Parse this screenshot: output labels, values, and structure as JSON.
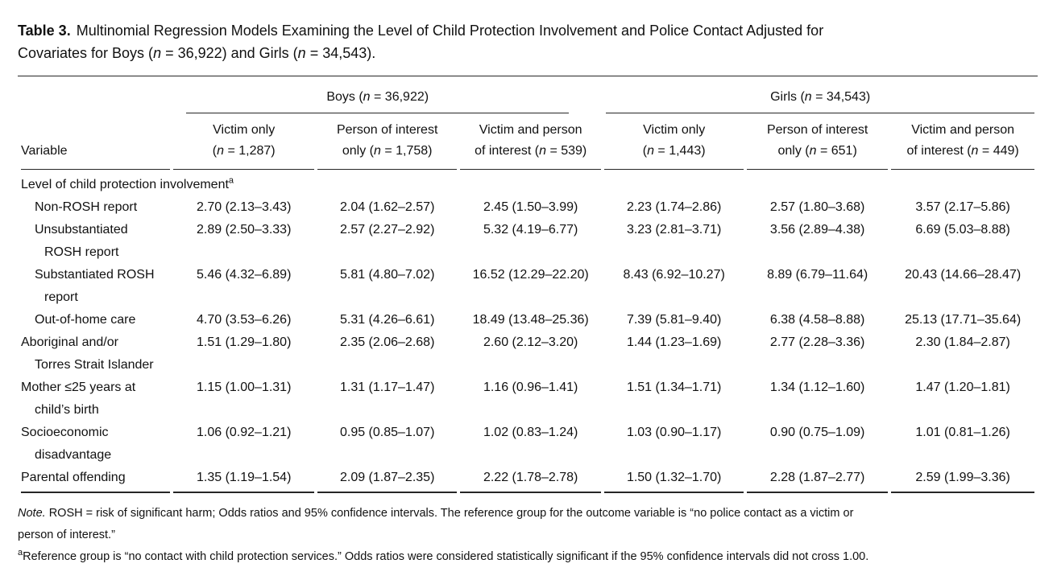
{
  "title": {
    "label": "Table 3.",
    "line1_rest": "Multinomial Regression Models Examining the Level of Child Protection Involvement and Police Contact Adjusted for",
    "line2": {
      "pre": "Covariates for Boys (",
      "n1": "n",
      "mid": " = 36,922) and Girls (",
      "n2": "n",
      "post": " = 34,543)."
    }
  },
  "table": {
    "variable_header": "Variable",
    "groups": [
      {
        "pre": "Boys (",
        "n": "n",
        "post": " = 36,922)"
      },
      {
        "pre": "Girls (",
        "n": "n",
        "post": " = 34,543)"
      }
    ],
    "columns": [
      {
        "line1": "Victim only",
        "line2_pre": "(",
        "n": "n",
        "line2_post": " = 1,287)"
      },
      {
        "line1": "Person of interest",
        "line2_pre": "only (",
        "n": "n",
        "line2_post": " = 1,758)"
      },
      {
        "line1": "Victim and person",
        "line2_pre": "of interest (",
        "n": "n",
        "line2_post": " = 539)"
      },
      {
        "line1": "Victim only",
        "line2_pre": "(",
        "n": "n",
        "line2_post": " = 1,443)"
      },
      {
        "line1": "Person of interest",
        "line2_pre": "only (",
        "n": "n",
        "line2_post": " = 651)"
      },
      {
        "line1": "Victim and person",
        "line2_pre": "of interest (",
        "n": "n",
        "line2_post": " = 449)"
      }
    ],
    "section": {
      "label": "Level of child protection involvement",
      "sup": "a"
    },
    "rows": [
      {
        "label1": "Non-ROSH report",
        "label2": "",
        "values": [
          "2.70 (2.13–3.43)",
          "2.04 (1.62–2.57)",
          "2.45 (1.50–3.99)",
          "2.23 (1.74–2.86)",
          "2.57 (1.80–3.68)",
          "3.57 (2.17–5.86)"
        ]
      },
      {
        "label1": "Unsubstantiated",
        "label2": "ROSH report",
        "values": [
          "2.89 (2.50–3.33)",
          "2.57 (2.27–2.92)",
          "5.32 (4.19–6.77)",
          "3.23 (2.81–3.71)",
          "3.56 (2.89–4.38)",
          "6.69 (5.03–8.88)"
        ]
      },
      {
        "label1": "Substantiated ROSH",
        "label2": "report",
        "values": [
          "5.46 (4.32–6.89)",
          "5.81 (4.80–7.02)",
          "16.52 (12.29–22.20)",
          "8.43 (6.92–10.27)",
          "8.89 (6.79–11.64)",
          "20.43 (14.66–28.47)"
        ]
      },
      {
        "label1": "Out-of-home care",
        "label2": "",
        "values": [
          "4.70 (3.53–6.26)",
          "5.31 (4.26–6.61)",
          "18.49 (13.48–25.36)",
          "7.39 (5.81–9.40)",
          "6.38 (4.58–8.88)",
          "25.13 (17.71–35.64)"
        ]
      },
      {
        "label1": "Aboriginal and/or",
        "label2": "Torres Strait Islander",
        "values": [
          "1.51 (1.29–1.80)",
          "2.35 (2.06–2.68)",
          "2.60 (2.12–3.20)",
          "1.44 (1.23–1.69)",
          "2.77 (2.28–3.36)",
          "2.30 (1.84–2.87)"
        ]
      },
      {
        "label1": "Mother ≤25 years at",
        "label2": "child’s birth",
        "values": [
          "1.15 (1.00–1.31)",
          "1.31 (1.17–1.47)",
          "1.16 (0.96–1.41)",
          "1.51 (1.34–1.71)",
          "1.34 (1.12–1.60)",
          "1.47 (1.20–1.81)"
        ]
      },
      {
        "label1": "Socioeconomic",
        "label2": "disadvantage",
        "values": [
          "1.06 (0.92–1.21)",
          "0.95 (0.85–1.07)",
          "1.02 (0.83–1.24)",
          "1.03 (0.90–1.17)",
          "0.90 (0.75–1.09)",
          "1.01 (0.81–1.26)"
        ]
      },
      {
        "label1": "Parental offending",
        "label2": "",
        "values": [
          "1.35 (1.19–1.54)",
          "2.09 (1.87–2.35)",
          "2.22 (1.78–2.78)",
          "1.50 (1.32–1.70)",
          "2.28 (1.87–2.77)",
          "2.59 (1.99–3.36)"
        ]
      }
    ]
  },
  "footnotes": {
    "note_label": "Note.",
    "note_line1": " ROSH = risk of significant harm; Odds ratios and 95% confidence intervals. The reference group for the outcome variable is “no police contact as a victim or",
    "note_line2": "person of interest.”",
    "fn_a_sup": "a",
    "fn_a_text": "Reference group is “no contact with child protection services.” Odds ratios were considered statistically significant if the 95% confidence intervals did not cross 1.00."
  }
}
